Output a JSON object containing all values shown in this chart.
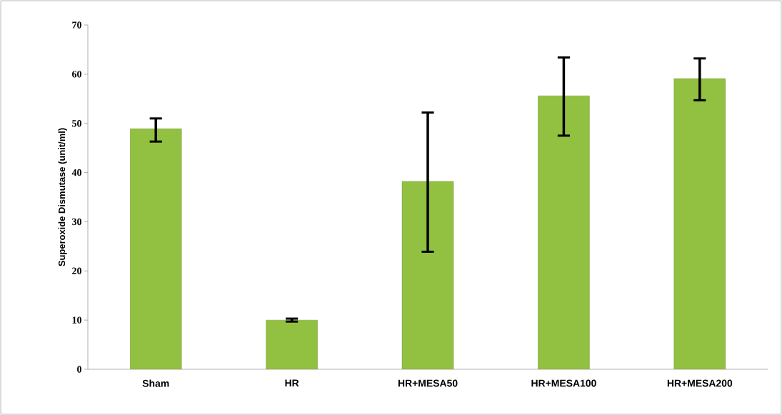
{
  "chart_data": {
    "type": "bar",
    "ylabel": "Superoxide Dismutase (unit/ml)",
    "categories": [
      "Sham",
      "HR",
      "HR+MESA50",
      "HR+MESA100",
      "HR+MESA200"
    ],
    "values": [
      48.9,
      10.0,
      38.2,
      55.6,
      59.1
    ],
    "errors": [
      [
        46.3,
        51.0
      ],
      [
        9.7,
        10.3
      ],
      [
        23.9,
        52.2
      ],
      [
        47.5,
        63.4
      ],
      [
        54.7,
        63.2
      ]
    ],
    "color": "#92c040",
    "ylim": [
      0,
      70
    ],
    "yticks": [
      0,
      10,
      20,
      30,
      40,
      50,
      60,
      70
    ],
    "grid": false
  }
}
